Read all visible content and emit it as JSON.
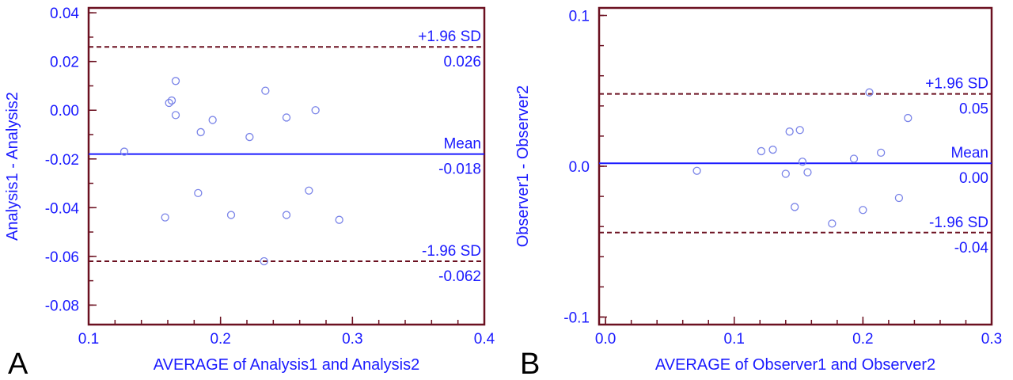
{
  "chart_data": [
    {
      "type": "scatter",
      "panel_label": "A",
      "xlabel": "AVERAGE of Analysis1 and Analysis2",
      "ylabel": "Analysis1 - Analysis2",
      "xlim": [
        0.1,
        0.4
      ],
      "ylim": [
        -0.088,
        0.042
      ],
      "x_ticks": [
        0.1,
        0.2,
        0.3,
        0.4
      ],
      "x_tick_labels": [
        "0.1",
        "0.2",
        "0.3",
        "0.4"
      ],
      "x_minor_step": 0.02,
      "y_ticks": [
        0.04,
        0.02,
        0.0,
        -0.02,
        -0.04,
        -0.06,
        -0.08
      ],
      "y_tick_labels": [
        "0.04",
        "0.02",
        "0.00",
        "-0.02",
        "-0.04",
        "-0.06",
        "-0.08"
      ],
      "y_minor_step": 0.01,
      "points": [
        {
          "x": 0.127,
          "y": -0.017
        },
        {
          "x": 0.158,
          "y": -0.044
        },
        {
          "x": 0.161,
          "y": 0.003
        },
        {
          "x": 0.163,
          "y": 0.004
        },
        {
          "x": 0.166,
          "y": 0.012
        },
        {
          "x": 0.166,
          "y": -0.002
        },
        {
          "x": 0.183,
          "y": -0.034
        },
        {
          "x": 0.185,
          "y": -0.009
        },
        {
          "x": 0.194,
          "y": -0.004
        },
        {
          "x": 0.208,
          "y": -0.043
        },
        {
          "x": 0.222,
          "y": -0.011
        },
        {
          "x": 0.233,
          "y": -0.062
        },
        {
          "x": 0.234,
          "y": 0.008
        },
        {
          "x": 0.25,
          "y": -0.003
        },
        {
          "x": 0.25,
          "y": -0.043
        },
        {
          "x": 0.267,
          "y": -0.033
        },
        {
          "x": 0.272,
          "y": 0.0
        },
        {
          "x": 0.29,
          "y": -0.045
        }
      ],
      "reference_lines": [
        {
          "kind": "upper",
          "value": 0.026,
          "label": "+1.96 SD",
          "value_label": "0.026"
        },
        {
          "kind": "mean",
          "value": -0.018,
          "label": "Mean",
          "value_label": "-0.018"
        },
        {
          "kind": "lower",
          "value": -0.062,
          "label": "-1.96 SD",
          "value_label": "-0.062"
        }
      ]
    },
    {
      "type": "scatter",
      "panel_label": "B",
      "xlabel": "AVERAGE of Observer1 and Observer2",
      "ylabel": "Observer1 - Observer2",
      "xlim": [
        -0.005,
        0.3
      ],
      "ylim": [
        -0.105,
        0.105
      ],
      "x_ticks": [
        0.0,
        0.1,
        0.2,
        0.3
      ],
      "x_tick_labels": [
        "0.0",
        "0.1",
        "0.2",
        "0.3"
      ],
      "x_minor_step": 0.02,
      "y_ticks": [
        0.1,
        0.0,
        -0.1
      ],
      "y_tick_labels": [
        "0.1",
        "0.0",
        "-0.1"
      ],
      "y_minor_step": 0.02,
      "points": [
        {
          "x": 0.071,
          "y": -0.003
        },
        {
          "x": 0.121,
          "y": 0.01
        },
        {
          "x": 0.13,
          "y": 0.011
        },
        {
          "x": 0.14,
          "y": -0.005
        },
        {
          "x": 0.143,
          "y": 0.023
        },
        {
          "x": 0.147,
          "y": -0.027
        },
        {
          "x": 0.151,
          "y": 0.024
        },
        {
          "x": 0.153,
          "y": 0.003
        },
        {
          "x": 0.157,
          "y": -0.004
        },
        {
          "x": 0.176,
          "y": -0.038
        },
        {
          "x": 0.193,
          "y": 0.005
        },
        {
          "x": 0.2,
          "y": -0.029
        },
        {
          "x": 0.205,
          "y": 0.049
        },
        {
          "x": 0.214,
          "y": 0.009
        },
        {
          "x": 0.228,
          "y": -0.021
        },
        {
          "x": 0.235,
          "y": 0.032
        }
      ],
      "reference_lines": [
        {
          "kind": "upper",
          "value": 0.048,
          "label": "+1.96 SD",
          "value_label": "0.05"
        },
        {
          "kind": "mean",
          "value": 0.002,
          "label": "Mean",
          "value_label": "0.00"
        },
        {
          "kind": "lower",
          "value": -0.044,
          "label": "-1.96 SD",
          "value_label": "-0.04"
        }
      ]
    }
  ]
}
